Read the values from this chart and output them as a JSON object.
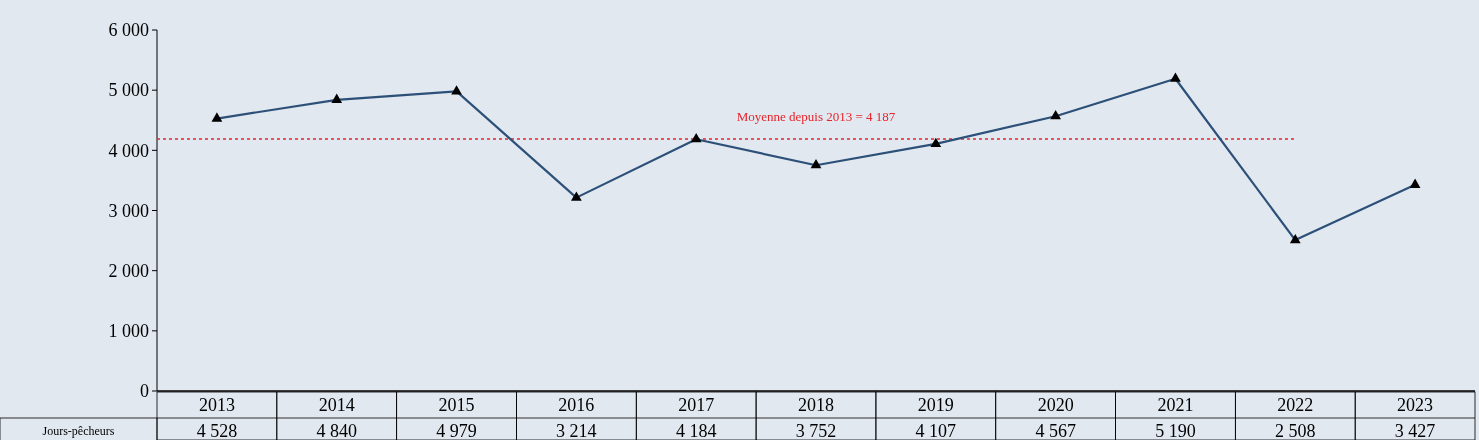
{
  "chart_data": {
    "type": "line",
    "categories": [
      "2013",
      "2014",
      "2015",
      "2016",
      "2017",
      "2018",
      "2019",
      "2020",
      "2021",
      "2022",
      "2023"
    ],
    "series": [
      {
        "name": "Jours-pêcheurs",
        "color": "#2c5078",
        "values": [
          4528,
          4840,
          4979,
          3214,
          4184,
          3752,
          4107,
          4567,
          5190,
          2508,
          3427
        ],
        "value_labels": [
          "4 528",
          "4 840",
          "4 979",
          "3 214",
          "4 184",
          "3 752",
          "4 107",
          "4 567",
          "5 190",
          "2 508",
          "3 427"
        ]
      }
    ],
    "ylim": [
      0,
      6000
    ],
    "yticks": [
      {
        "value": 0,
        "label": "0"
      },
      {
        "value": 1000,
        "label": "1 000"
      },
      {
        "value": 2000,
        "label": "2 000"
      },
      {
        "value": 3000,
        "label": "3 000"
      },
      {
        "value": 4000,
        "label": "4 000"
      },
      {
        "value": 5000,
        "label": "5 000"
      },
      {
        "value": 6000,
        "label": "6 000"
      }
    ],
    "ref_lines": [
      {
        "axis": "y",
        "value": 4187,
        "label": "Moyenne depuis 2013 = 4 187",
        "color": "#e8242c",
        "line_style": "dotted"
      }
    ],
    "marker": "triangle",
    "line_style": "solid",
    "grid": false
  }
}
